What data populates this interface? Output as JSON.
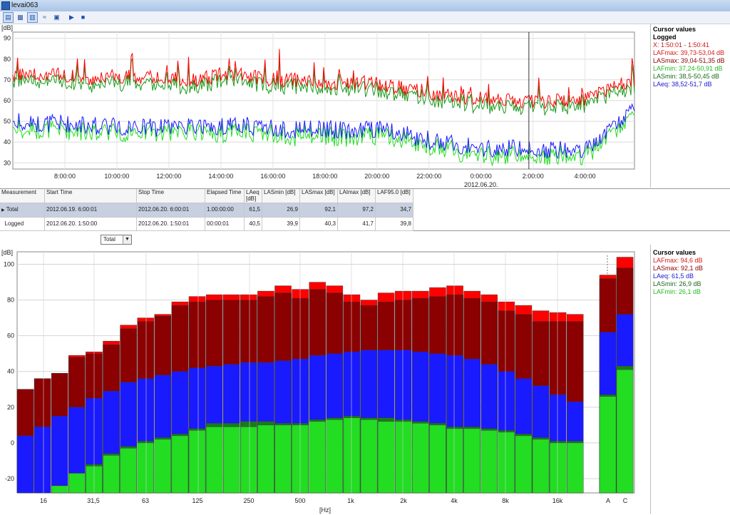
{
  "window": {
    "title": "levai063"
  },
  "toolbar": {
    "buttons": [
      "time-history",
      "spectrum",
      "bar-chart",
      "statistics",
      "settings",
      "play",
      "stop"
    ]
  },
  "colors": {
    "lafmax": "#ff0000",
    "lasmax": "#8b0000",
    "laeq": "#1a1aff",
    "lasmin": "#1a7a1a",
    "lafmin": "#22dd22"
  },
  "time_chart_data": {
    "type": "line",
    "ylabel": "[dB]",
    "ylim": [
      27,
      93
    ],
    "y_ticks": [
      "90",
      "80",
      "70",
      "60",
      "50",
      "40",
      "30"
    ],
    "x_ticks": [
      "8:00:00",
      "10:00:00",
      "12:00:00",
      "14:00:00",
      "16:00:00",
      "18:00:00",
      "20:00:00",
      "22:00:00",
      "0:00:00",
      "2:00:00",
      "4:00:00"
    ],
    "date_label": "2012.06.20.",
    "x_range_hours": [
      6,
      29.9
    ],
    "cursor_hour": 25.84,
    "series": [
      {
        "name": "LAFmax",
        "hours": [
          6,
          7,
          8,
          9,
          10,
          11,
          12,
          13,
          14,
          15,
          16,
          17,
          18,
          19,
          20,
          21,
          22,
          23,
          24,
          25,
          26,
          27,
          28,
          29,
          29.9
        ],
        "values": [
          72,
          73,
          72,
          71,
          72,
          71,
          71,
          70,
          72,
          72,
          70,
          70,
          68,
          69,
          68,
          66,
          64,
          62,
          61,
          60,
          59,
          60,
          61,
          66,
          70
        ]
      },
      {
        "name": "LAeq",
        "hours": [
          6,
          7,
          8,
          9,
          10,
          11,
          12,
          13,
          14,
          15,
          16,
          17,
          18,
          19,
          20,
          21,
          22,
          23,
          24,
          25,
          26,
          27,
          28,
          29,
          29.9
        ],
        "values": [
          50,
          49,
          49,
          48,
          48,
          47,
          47,
          47,
          48,
          48,
          47,
          46,
          46,
          46,
          46,
          44,
          41,
          39,
          37,
          37,
          37,
          36,
          37,
          46,
          55
        ]
      }
    ]
  },
  "cursor_top": {
    "title": "Cursor values",
    "subtitle": "Logged",
    "lines": [
      "X: 1:50:01 - 1:50:41",
      "LAFmax: 39,73-53,04 dB",
      "LASmax: 39,04-51,35 dB",
      "LAFmin: 37,24-50,91 dB",
      "LASmin: 38,5-50,45 dB",
      "LAeq: 38,52-51,7 dB"
    ]
  },
  "table": {
    "headers": [
      "Measurement",
      "Start Time",
      "Stop Time",
      "Elapsed Time",
      "LAeq [dB]",
      "LASmin [dB]",
      "LASmax [dB]",
      "LAImax [dB]",
      "LAF95.0 [dB]"
    ],
    "rows": [
      [
        "Total",
        "2012.06.19. 6:00:01",
        "2012.06.20. 6:00:01",
        "1.00:00:00",
        "61,5",
        "26,9",
        "92,1",
        "97,2",
        "34,7"
      ],
      [
        "Logged",
        "2012.06.20. 1:50:00",
        "2012.06.20. 1:50:01",
        "00:00:01",
        "40,5",
        "39,9",
        "40,3",
        "41,7",
        "39,8"
      ]
    ]
  },
  "dropdown": {
    "value": "Total"
  },
  "chart_data": {
    "type": "bar",
    "ylabel": "[dB]",
    "xlabel": "[Hz]",
    "ylim": [
      -28,
      107
    ],
    "y_ticks": [
      "100",
      "80",
      "60",
      "40",
      "20",
      "0",
      "-20"
    ],
    "x_tick_labels": [
      "16",
      "31,5",
      "63",
      "125",
      "250",
      "500",
      "1k",
      "2k",
      "4k",
      "8k",
      "16k",
      "A",
      "C"
    ],
    "categories": [
      "12.5",
      "16",
      "20",
      "25",
      "31.5",
      "40",
      "50",
      "63",
      "80",
      "100",
      "125",
      "160",
      "200",
      "250",
      "315",
      "400",
      "500",
      "630",
      "800",
      "1k",
      "1.25k",
      "1.6k",
      "2k",
      "2.5k",
      "3.15k",
      "4k",
      "5k",
      "6.3k",
      "8k",
      "10k",
      "12.5k",
      "16k",
      "20k",
      "A",
      "C"
    ],
    "series": [
      {
        "name": "LAFmin",
        "values": [
          -28,
          -28,
          -24,
          -17,
          -13,
          -7,
          -3,
          0,
          2,
          4,
          7,
          9,
          9,
          9,
          10,
          10,
          10,
          12,
          13,
          14,
          13,
          12,
          12,
          11,
          10,
          8,
          8,
          7,
          6,
          4,
          2,
          0,
          0,
          26,
          41
        ]
      },
      {
        "name": "LASmin",
        "values": [
          -28,
          -28,
          -24,
          -17,
          -12,
          -6,
          -2,
          1,
          3,
          5,
          8,
          11,
          11,
          12,
          12,
          11,
          11,
          13,
          14,
          15,
          14,
          14,
          13,
          12,
          11,
          9,
          9,
          8,
          7,
          5,
          3,
          1,
          1,
          27,
          43
        ]
      },
      {
        "name": "LAeq",
        "values": [
          4,
          9,
          15,
          20,
          25,
          29,
          34,
          36,
          38,
          40,
          42,
          43,
          44,
          45,
          45,
          46,
          47,
          49,
          50,
          51,
          52,
          52,
          52,
          51,
          50,
          49,
          47,
          44,
          40,
          36,
          32,
          27,
          23,
          62,
          72
        ]
      },
      {
        "name": "LASmax",
        "values": [
          30,
          36,
          39,
          48,
          50,
          55,
          64,
          68,
          71,
          77,
          79,
          80,
          80,
          80,
          82,
          84,
          81,
          86,
          84,
          79,
          77,
          79,
          80,
          81,
          82,
          83,
          81,
          79,
          74,
          72,
          68,
          68,
          68,
          92,
          98
        ]
      },
      {
        "name": "LAFmax",
        "values": [
          30,
          36,
          39,
          49,
          51,
          57,
          66,
          70,
          72,
          79,
          82,
          83,
          83,
          83,
          85,
          88,
          86,
          90,
          88,
          83,
          80,
          84,
          85,
          85,
          87,
          88,
          85,
          83,
          79,
          77,
          74,
          73,
          72,
          94,
          104
        ]
      }
    ]
  },
  "cursor_bottom": {
    "title": "Cursor values",
    "lines": [
      "LAFmax: 94,6 dB",
      "LASmax: 92,1 dB",
      "LAeq: 61,5 dB",
      "LASmin: 26,9 dB",
      "LAFmin: 26,1 dB"
    ]
  }
}
